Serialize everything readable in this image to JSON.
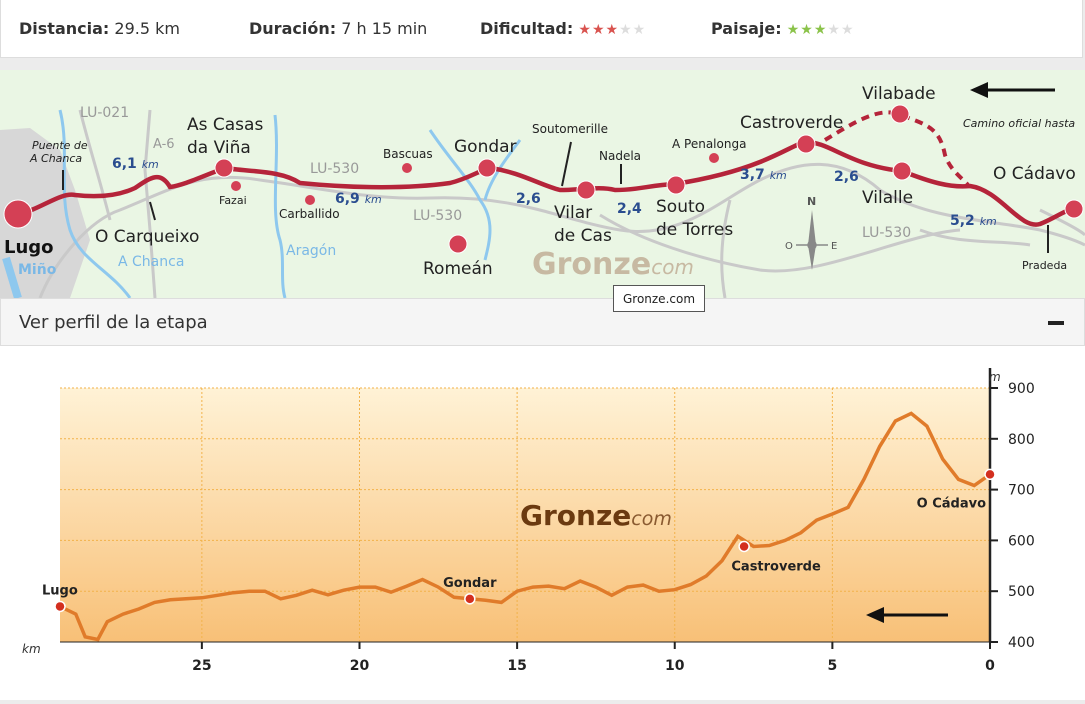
{
  "stats": {
    "distancia_label": "Distancia:",
    "distancia_value": "29.5 km",
    "duracion_label": "Duración:",
    "duracion_value": "7 h 15 min",
    "dificultad_label": "Dificultad:",
    "dificultad_rating": 3,
    "paisaje_label": "Paisaje:",
    "paisaje_rating": 3,
    "rating_max": 5,
    "dificultad_color": "#d9534f",
    "paisaje_color": "#8bc34a"
  },
  "map": {
    "places": {
      "lugo": "Lugo",
      "puente_line1": "Puente de",
      "puente_line2": "A Chanca",
      "carqueixo": "O Carqueixo",
      "casas_line1": "As Casas",
      "casas_line2": "da Viña",
      "fazai": "Fazai",
      "carballido": "Carballido",
      "bascuas": "Bascuas",
      "gondar": "Gondar",
      "romean": "Romeán",
      "soutomerille": "Soutomerille",
      "vilar_line1": "Vilar",
      "vilar_line2": "de Cas",
      "nadela": "Nadela",
      "penalonga": "A Penalonga",
      "souto_line1": "Souto",
      "souto_line2": "de Torres",
      "castroverde": "Castroverde",
      "vilabade": "Vilabade",
      "vilalle": "Vilalle",
      "cadavo": "O Cádavo",
      "pradeda": "Pradeda"
    },
    "roads": {
      "lu021": "LU-021",
      "a6": "A-6",
      "lu530a": "LU-530",
      "lu530b": "LU-530",
      "lu530c": "LU-530"
    },
    "rivers": {
      "mino": "Miño",
      "chanca": "A Chanca",
      "aragon": "Aragón"
    },
    "distances": {
      "d1": "6,1",
      "d2": "6,9",
      "d3": "2,6",
      "d4": "2,4",
      "d5": "3,7",
      "d6": "2,6",
      "d7": "5,2",
      "km": "km"
    },
    "camino_oficial": "Camino oficial hasta",
    "compass": {
      "n": "N",
      "o": "O",
      "e": "E"
    },
    "watermark_main": "Gronze",
    "watermark_sub": "com",
    "route_color": "#b5243a"
  },
  "tooltip": "Gronze.com",
  "panel": {
    "title": "Ver perfil de la etapa"
  },
  "profile": {
    "watermark_main": "Gronze",
    "watermark_sub": "com",
    "y_unit": "m",
    "x_unit": "km",
    "y_ticks": [
      400,
      500,
      600,
      700,
      800,
      900
    ],
    "x_ticks": [
      25,
      20,
      15,
      10,
      5,
      0
    ],
    "line_color": "#e07b2a",
    "chart_data": {
      "type": "area",
      "title": "",
      "xlabel": "km",
      "ylabel": "m",
      "xlim": [
        29.5,
        0
      ],
      "ylim": [
        400,
        900
      ],
      "x": [
        29.5,
        29.0,
        28.7,
        28.3,
        28.0,
        27.5,
        27.0,
        26.5,
        26.0,
        25.5,
        25.0,
        24.5,
        24.0,
        23.5,
        23.0,
        22.5,
        22.0,
        21.5,
        21.0,
        20.5,
        20.0,
        19.5,
        19.0,
        18.5,
        18.0,
        17.5,
        17.0,
        16.5,
        16.0,
        15.5,
        15.0,
        14.5,
        14.0,
        13.5,
        13.0,
        12.5,
        12.0,
        11.5,
        11.0,
        10.5,
        10.0,
        9.5,
        9.0,
        8.5,
        8.0,
        7.5,
        7.0,
        6.5,
        6.0,
        5.5,
        5.0,
        4.5,
        4.0,
        3.5,
        3.0,
        2.5,
        2.0,
        1.5,
        1.0,
        0.5,
        0.0
      ],
      "y": [
        470,
        455,
        410,
        405,
        440,
        455,
        465,
        478,
        483,
        485,
        487,
        492,
        497,
        500,
        500,
        485,
        492,
        502,
        493,
        502,
        508,
        508,
        498,
        510,
        523,
        508,
        488,
        485,
        482,
        478,
        500,
        508,
        510,
        505,
        520,
        508,
        492,
        508,
        512,
        500,
        503,
        513,
        530,
        560,
        608,
        588,
        590,
        600,
        615,
        640,
        652,
        665,
        720,
        785,
        835,
        850,
        825,
        760,
        720,
        708,
        730
      ],
      "labeled_points": [
        {
          "name": "Lugo",
          "x": 29.5,
          "y": 470
        },
        {
          "name": "Gondar",
          "x": 16.5,
          "y": 485
        },
        {
          "name": "Castroverde",
          "x": 7.8,
          "y": 588
        },
        {
          "name": "O Cádavo",
          "x": 0.0,
          "y": 730
        }
      ]
    }
  }
}
